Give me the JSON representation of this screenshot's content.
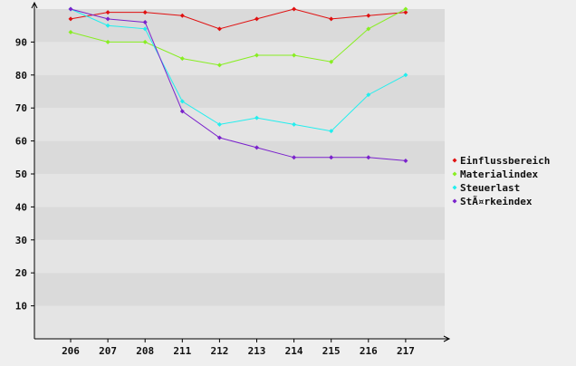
{
  "chart_data": {
    "type": "line",
    "title": "",
    "xlabel": "",
    "ylabel": "",
    "categories": [
      "206",
      "207",
      "208",
      "211",
      "212",
      "213",
      "214",
      "215",
      "216",
      "217"
    ],
    "ylim": [
      0,
      100
    ],
    "yticks": [
      10,
      20,
      30,
      40,
      50,
      60,
      70,
      80,
      90
    ],
    "grid": "horizontal bands",
    "legend_position": "right",
    "series": [
      {
        "name": "Einflussbereich",
        "color": "#e01010",
        "values": [
          97,
          99,
          99,
          98,
          94,
          97,
          100,
          97,
          98,
          99
        ]
      },
      {
        "name": "Materialindex",
        "color": "#88ee22",
        "values": [
          93,
          90,
          90,
          85,
          83,
          86,
          86,
          84,
          94,
          100
        ]
      },
      {
        "name": "Steuerlast",
        "color": "#22eeee",
        "values": [
          100,
          95,
          94,
          72,
          65,
          67,
          65,
          63,
          74,
          80
        ]
      },
      {
        "name": "StÃ¤rkeindex",
        "color": "#7a22cc",
        "values": [
          100,
          97,
          96,
          69,
          61,
          58,
          55,
          55,
          55,
          54
        ]
      }
    ]
  }
}
